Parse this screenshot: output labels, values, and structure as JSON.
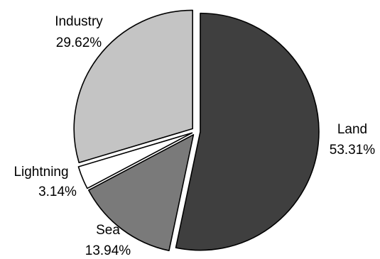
{
  "chart_data": {
    "type": "pie",
    "title": "",
    "slices": [
      {
        "label": "Land",
        "value": 53.31,
        "value_label": "53.31%",
        "color": "#3f3f3f"
      },
      {
        "label": "Sea",
        "value": 13.94,
        "value_label": "13.94%",
        "color": "#7a7a7a"
      },
      {
        "label": "Lightning",
        "value": 3.14,
        "value_label": "3.14%",
        "color": "#ffffff"
      },
      {
        "label": "Industry",
        "value": 29.62,
        "value_label": "29.62%",
        "color": "#c4c4c4"
      }
    ],
    "start": "12 o'clock",
    "direction": "clockwise",
    "exploded": true,
    "legend": "none"
  }
}
